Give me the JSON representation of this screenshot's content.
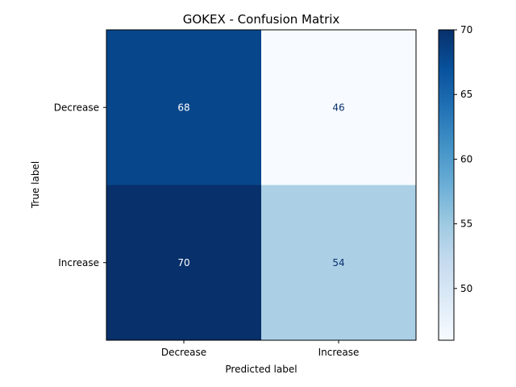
{
  "chart_data": {
    "type": "heatmap",
    "title": "GOKEX - Confusion Matrix",
    "xlabel": "Predicted label",
    "ylabel": "True label",
    "x_categories": [
      "Decrease",
      "Increase"
    ],
    "y_categories": [
      "Decrease",
      "Increase"
    ],
    "values": [
      [
        68,
        46
      ],
      [
        70,
        54
      ]
    ],
    "colormap": "Blues",
    "color_range": [
      46,
      70
    ],
    "colorbar_ticks": [
      50,
      55,
      60,
      65,
      70
    ],
    "grid": false,
    "legend": "colorbar-right"
  }
}
